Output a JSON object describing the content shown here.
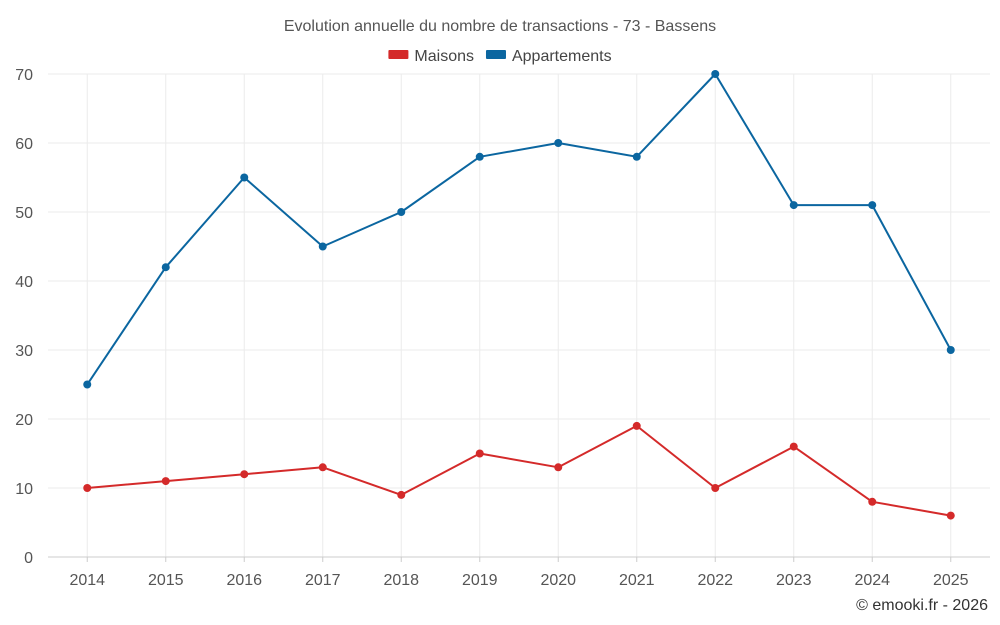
{
  "chart_data": {
    "type": "line",
    "title": "Evolution annuelle du nombre de transactions - 73 - Bassens",
    "xlabel": "",
    "ylabel": "",
    "categories": [
      "2014",
      "2015",
      "2016",
      "2017",
      "2018",
      "2019",
      "2020",
      "2021",
      "2022",
      "2023",
      "2024",
      "2025"
    ],
    "ylim": [
      0,
      70
    ],
    "yticks": [
      0,
      10,
      20,
      30,
      40,
      50,
      60,
      70
    ],
    "grid": true,
    "legend_position": "top-center",
    "series": [
      {
        "name": "Maisons",
        "color": "#d42a2a",
        "values": [
          10,
          11,
          12,
          13,
          9,
          15,
          13,
          19,
          10,
          16,
          8,
          6
        ]
      },
      {
        "name": "Appartements",
        "color": "#0b66a0",
        "values": [
          25,
          42,
          55,
          45,
          50,
          58,
          60,
          58,
          70,
          51,
          51,
          30
        ]
      }
    ]
  },
  "copyright": "© emooki.fr - 2026"
}
